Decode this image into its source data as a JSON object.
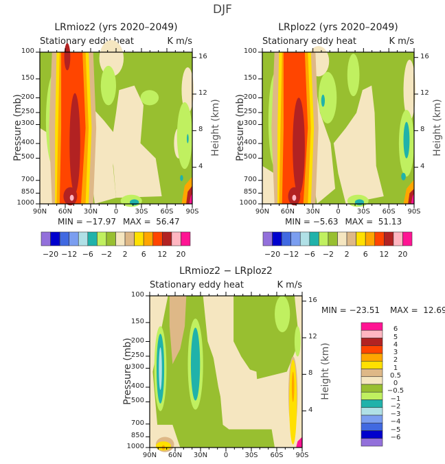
{
  "figure_title": "DJF",
  "palette": [
    "#9370DB",
    "#0000CD",
    "#4169E1",
    "#7B9EF0",
    "#B0E0E6",
    "#20B2AA",
    "#C0F060",
    "#98BF30",
    "#F5E6C0",
    "#DEB887",
    "#FFE000",
    "#FFA500",
    "#FF4500",
    "#B22222",
    "#FFB6C1",
    "#FF1493"
  ],
  "chart_data": [
    {
      "type": "heatmap",
      "subtype": "filled-contour",
      "title": "LRmioz2 (yrs 2020–2049)",
      "variable": "Stationary eddy heat",
      "units": "K m/s",
      "xlabel": "",
      "ylabel": "Pressure (mb)",
      "y2label": "Height (km)",
      "x_ticks": [
        "90N",
        "60N",
        "30N",
        "0",
        "30S",
        "60S",
        "90S"
      ],
      "y_ticks": [
        "100",
        "150",
        "200",
        "250",
        "300",
        "400",
        "500",
        "700",
        "850",
        "1000"
      ],
      "y2_ticks": [
        "16",
        "12",
        "8",
        "4"
      ],
      "y_scale": "log",
      "ylim": [
        1000,
        100
      ],
      "min_label": "MIN = −17.97",
      "max_label": "MAX =  56.47",
      "min": -17.97,
      "max": 56.47,
      "colorbar_labels": [
        "−20",
        "−12",
        "−6",
        "−2",
        "2",
        "6",
        "12",
        "20"
      ],
      "colorbar_orientation": "horizontal"
    },
    {
      "type": "heatmap",
      "subtype": "filled-contour",
      "title": "LRploz2 (yrs 2020–2049)",
      "variable": "Stationary eddy heat",
      "units": "K m/s",
      "xlabel": "",
      "ylabel": "Pressure (mb)",
      "y2label": "Height (km)",
      "x_ticks": [
        "90N",
        "60N",
        "30N",
        "0",
        "30S",
        "60S",
        "90S"
      ],
      "y_ticks": [
        "100",
        "150",
        "200",
        "250",
        "300",
        "400",
        "500",
        "700",
        "850",
        "1000"
      ],
      "y2_ticks": [
        "16",
        "12",
        "8",
        "4"
      ],
      "y_scale": "log",
      "ylim": [
        1000,
        100
      ],
      "min_label": "MIN = −5.63",
      "max_label": "MAX =  51.13",
      "min": -5.63,
      "max": 51.13,
      "colorbar_labels": [
        "−20",
        "−12",
        "−6",
        "−2",
        "2",
        "6",
        "12",
        "20"
      ],
      "colorbar_orientation": "horizontal"
    },
    {
      "type": "heatmap",
      "subtype": "filled-contour",
      "title": "LRmioz2 − LRploz2",
      "variable": "Stationary eddy heat",
      "units": "K m/s",
      "xlabel": "",
      "ylabel": "Pressure (mb)",
      "y2label": "Height (km)",
      "x_ticks": [
        "90N",
        "60N",
        "30N",
        "0",
        "30S",
        "60S",
        "90S"
      ],
      "y_ticks": [
        "100",
        "150",
        "200",
        "250",
        "300",
        "400",
        "500",
        "700",
        "850",
        "1000"
      ],
      "y2_ticks": [
        "16",
        "12",
        "8",
        "4"
      ],
      "y_scale": "log",
      "ylim": [
        1000,
        100
      ],
      "min_label": "MIN = −23.51",
      "max_label": "MAX =  12.69",
      "min": -23.51,
      "max": 12.69,
      "colorbar_labels": [
        "6",
        "5",
        "4",
        "3",
        "2",
        "1",
        "0.5",
        "0",
        "−0.5",
        "−1",
        "−2",
        "−3",
        "−4",
        "−5",
        "−6"
      ],
      "colorbar_orientation": "vertical"
    }
  ]
}
